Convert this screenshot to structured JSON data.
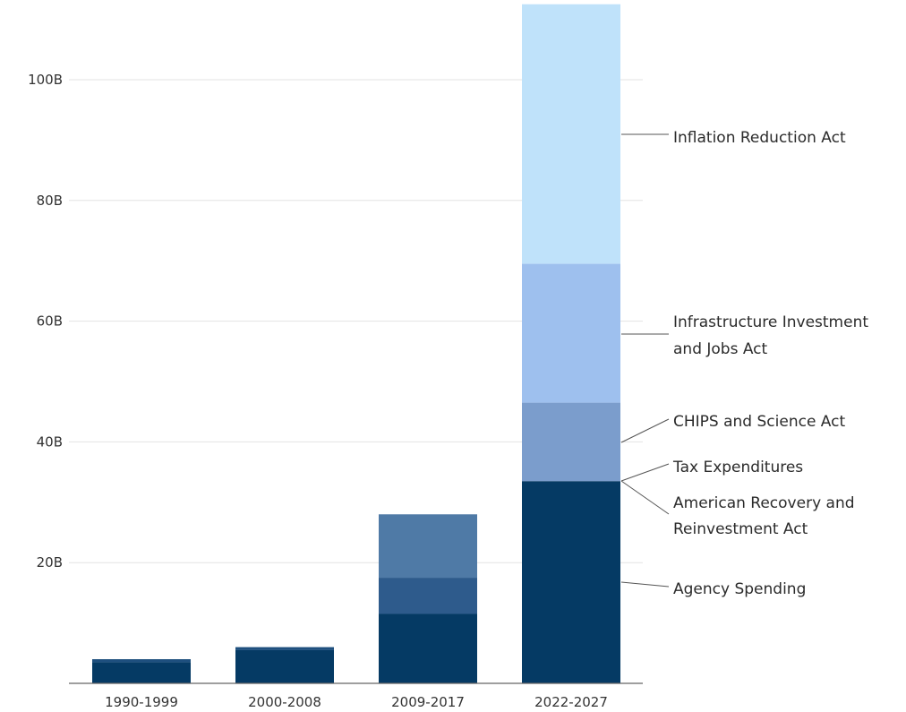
{
  "chart_data": {
    "type": "bar",
    "stacked": true,
    "categories": [
      "1990-1999",
      "2000-2008",
      "2009-2017",
      "2022-2027"
    ],
    "series": [
      {
        "name": "Agency Spending",
        "values": [
          3.5,
          5.5,
          11.5,
          33.5
        ],
        "color": "#053a64"
      },
      {
        "name": "Tax Expenditures",
        "values": [
          0.5,
          0.5,
          0,
          0
        ],
        "color": "#1e4f7e"
      },
      {
        "name": "American Recovery and Reinvestment Act",
        "values": [
          0,
          0,
          6,
          0
        ],
        "color": "#2e5b8c"
      },
      {
        "name": "",
        "values": [
          0,
          0,
          10.5,
          0
        ],
        "color": "#4f7aa6"
      },
      {
        "name": "CHIPS and Science Act",
        "values": [
          0,
          0,
          0,
          13
        ],
        "color": "#7b9dcc"
      },
      {
        "name": "Infrastructure Investment and Jobs Act",
        "values": [
          0,
          0,
          0,
          23
        ],
        "color": "#9ec0ee"
      },
      {
        "name": "Inflation Reduction Act",
        "values": [
          0,
          0,
          0,
          43
        ],
        "color": "#bfe2fa"
      }
    ],
    "yticks": [
      "20B",
      "40B",
      "60B",
      "80B",
      "100B"
    ],
    "ylim": [
      0,
      113
    ],
    "grid": true,
    "annotations": [
      {
        "lines": [
          "Inflation Reduction Act"
        ]
      },
      {
        "lines": [
          "Infrastructure Investment",
          "and Jobs Act"
        ]
      },
      {
        "lines": [
          "CHIPS and Science Act"
        ]
      },
      {
        "lines": [
          "Tax Expenditures"
        ]
      },
      {
        "lines": [
          "American Recovery and",
          "Reinvestment Act"
        ]
      },
      {
        "lines": [
          "Agency Spending"
        ]
      }
    ]
  }
}
